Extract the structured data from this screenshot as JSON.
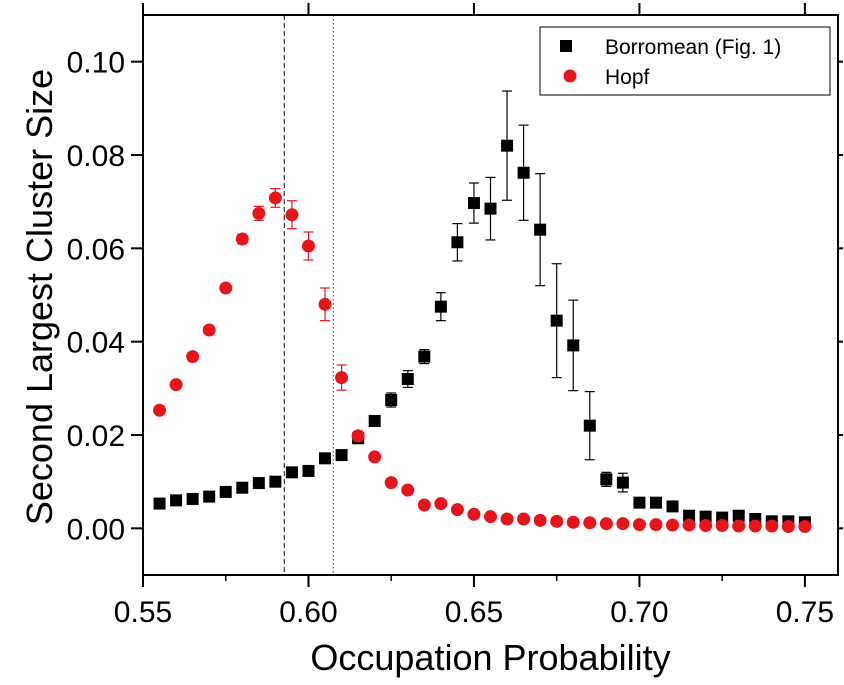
{
  "chart_data": {
    "type": "scatter",
    "xlabel": "Occupation Probability",
    "ylabel": "Second Largest Cluster Size",
    "xlim": [
      0.55,
      0.76
    ],
    "ylim": [
      -0.01,
      0.11
    ],
    "x_ticks": [
      0.55,
      0.6,
      0.65,
      0.7,
      0.75
    ],
    "x_tick_labels": [
      "0.55",
      "0.60",
      "0.65",
      "0.70",
      "0.75"
    ],
    "y_ticks": [
      0.0,
      0.02,
      0.04,
      0.06,
      0.08,
      0.1
    ],
    "y_tick_labels": [
      "0.00",
      "0.02",
      "0.04",
      "0.06",
      "0.08",
      "0.10"
    ],
    "grid": false,
    "legend_position": "top-right",
    "vertical_lines": [
      {
        "x": 0.5927,
        "style": "dashed"
      },
      {
        "x": 0.6075,
        "style": "dotted"
      }
    ],
    "series": [
      {
        "name": "Borromean (Fig. 1)",
        "marker": "square",
        "color": "#000000",
        "points": [
          {
            "x": 0.555,
            "y": 0.0053,
            "err": 0
          },
          {
            "x": 0.56,
            "y": 0.006,
            "err": 0
          },
          {
            "x": 0.565,
            "y": 0.0063,
            "err": 0
          },
          {
            "x": 0.57,
            "y": 0.0068,
            "err": 0
          },
          {
            "x": 0.575,
            "y": 0.0078,
            "err": 0
          },
          {
            "x": 0.58,
            "y": 0.0087,
            "err": 0
          },
          {
            "x": 0.585,
            "y": 0.0097,
            "err": 0
          },
          {
            "x": 0.59,
            "y": 0.01,
            "err": 0
          },
          {
            "x": 0.595,
            "y": 0.012,
            "err": 0
          },
          {
            "x": 0.6,
            "y": 0.0123,
            "err": 0
          },
          {
            "x": 0.605,
            "y": 0.015,
            "err": 0
          },
          {
            "x": 0.61,
            "y": 0.0157,
            "err": 0
          },
          {
            "x": 0.615,
            "y": 0.0193,
            "err": 0.0007
          },
          {
            "x": 0.62,
            "y": 0.023,
            "err": 0.001
          },
          {
            "x": 0.625,
            "y": 0.0275,
            "err": 0.0015
          },
          {
            "x": 0.63,
            "y": 0.032,
            "err": 0.0018
          },
          {
            "x": 0.635,
            "y": 0.0368,
            "err": 0.0015
          },
          {
            "x": 0.64,
            "y": 0.0475,
            "err": 0.003
          },
          {
            "x": 0.645,
            "y": 0.0613,
            "err": 0.004
          },
          {
            "x": 0.65,
            "y": 0.0697,
            "err": 0.0043
          },
          {
            "x": 0.655,
            "y": 0.0685,
            "err": 0.0067
          },
          {
            "x": 0.66,
            "y": 0.082,
            "err": 0.0117
          },
          {
            "x": 0.665,
            "y": 0.0762,
            "err": 0.0102
          },
          {
            "x": 0.67,
            "y": 0.064,
            "err": 0.012
          },
          {
            "x": 0.675,
            "y": 0.0445,
            "err": 0.0122
          },
          {
            "x": 0.68,
            "y": 0.0392,
            "err": 0.0097
          },
          {
            "x": 0.685,
            "y": 0.022,
            "err": 0.0073
          },
          {
            "x": 0.69,
            "y": 0.0105,
            "err": 0.0015
          },
          {
            "x": 0.695,
            "y": 0.0098,
            "err": 0.002
          },
          {
            "x": 0.7,
            "y": 0.0055,
            "err": 0.001
          },
          {
            "x": 0.705,
            "y": 0.0055,
            "err": 0.001
          },
          {
            "x": 0.71,
            "y": 0.0047,
            "err": 0
          },
          {
            "x": 0.715,
            "y": 0.0027,
            "err": 0
          },
          {
            "x": 0.72,
            "y": 0.0025,
            "err": 0
          },
          {
            "x": 0.725,
            "y": 0.0023,
            "err": 0
          },
          {
            "x": 0.73,
            "y": 0.0027,
            "err": 0
          },
          {
            "x": 0.735,
            "y": 0.002,
            "err": 0
          },
          {
            "x": 0.74,
            "y": 0.0015,
            "err": 0
          },
          {
            "x": 0.745,
            "y": 0.0015,
            "err": 0
          },
          {
            "x": 0.75,
            "y": 0.0013,
            "err": 0
          }
        ]
      },
      {
        "name": "Hopf",
        "marker": "circle",
        "color": "#e8141c",
        "points": [
          {
            "x": 0.555,
            "y": 0.0253,
            "err": 0
          },
          {
            "x": 0.56,
            "y": 0.0308,
            "err": 0
          },
          {
            "x": 0.565,
            "y": 0.0368,
            "err": 0
          },
          {
            "x": 0.57,
            "y": 0.0425,
            "err": 0
          },
          {
            "x": 0.575,
            "y": 0.0515,
            "err": 0.0007
          },
          {
            "x": 0.58,
            "y": 0.062,
            "err": 0.001
          },
          {
            "x": 0.585,
            "y": 0.0675,
            "err": 0.0015
          },
          {
            "x": 0.59,
            "y": 0.0708,
            "err": 0.002
          },
          {
            "x": 0.595,
            "y": 0.0672,
            "err": 0.003
          },
          {
            "x": 0.6,
            "y": 0.0605,
            "err": 0.003
          },
          {
            "x": 0.605,
            "y": 0.048,
            "err": 0.0035
          },
          {
            "x": 0.61,
            "y": 0.0323,
            "err": 0.0027
          },
          {
            "x": 0.615,
            "y": 0.0198,
            "err": 0.001
          },
          {
            "x": 0.62,
            "y": 0.0153,
            "err": 0.0008
          },
          {
            "x": 0.625,
            "y": 0.0098,
            "err": 0
          },
          {
            "x": 0.63,
            "y": 0.0082,
            "err": 0
          },
          {
            "x": 0.635,
            "y": 0.005,
            "err": 0
          },
          {
            "x": 0.64,
            "y": 0.0053,
            "err": 0
          },
          {
            "x": 0.645,
            "y": 0.004,
            "err": 0
          },
          {
            "x": 0.65,
            "y": 0.003,
            "err": 0
          },
          {
            "x": 0.655,
            "y": 0.0025,
            "err": 0
          },
          {
            "x": 0.66,
            "y": 0.002,
            "err": 0
          },
          {
            "x": 0.665,
            "y": 0.002,
            "err": 0
          },
          {
            "x": 0.67,
            "y": 0.0017,
            "err": 0
          },
          {
            "x": 0.675,
            "y": 0.0015,
            "err": 0
          },
          {
            "x": 0.68,
            "y": 0.0013,
            "err": 0
          },
          {
            "x": 0.685,
            "y": 0.0012,
            "err": 0
          },
          {
            "x": 0.69,
            "y": 0.001,
            "err": 0
          },
          {
            "x": 0.695,
            "y": 0.001,
            "err": 0
          },
          {
            "x": 0.7,
            "y": 0.0008,
            "err": 0
          },
          {
            "x": 0.705,
            "y": 0.0008,
            "err": 0
          },
          {
            "x": 0.71,
            "y": 0.0007,
            "err": 0
          },
          {
            "x": 0.715,
            "y": 0.0007,
            "err": 0
          },
          {
            "x": 0.72,
            "y": 0.0006,
            "err": 0
          },
          {
            "x": 0.725,
            "y": 0.0006,
            "err": 0
          },
          {
            "x": 0.73,
            "y": 0.0005,
            "err": 0
          },
          {
            "x": 0.735,
            "y": 0.0005,
            "err": 0
          },
          {
            "x": 0.74,
            "y": 0.0005,
            "err": 0
          },
          {
            "x": 0.745,
            "y": 0.0004,
            "err": 0
          },
          {
            "x": 0.75,
            "y": 0.0004,
            "err": 0
          }
        ]
      }
    ]
  }
}
